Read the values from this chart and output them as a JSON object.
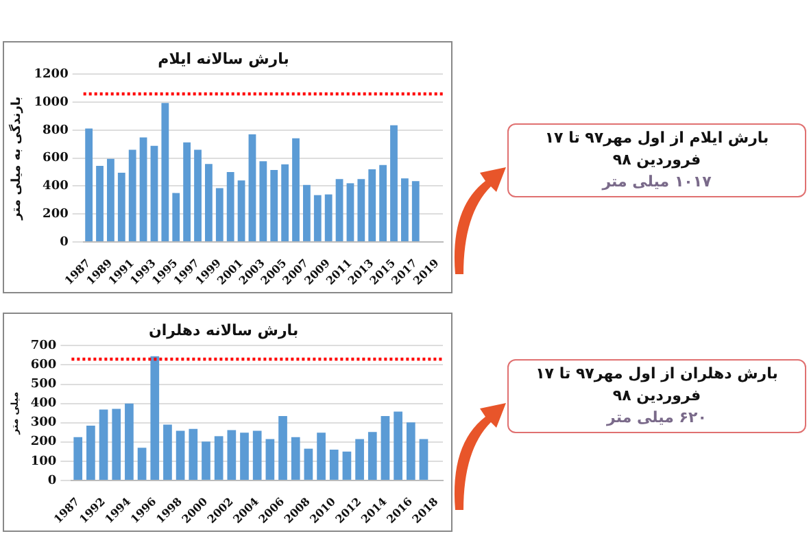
{
  "chart_data": [
    {
      "type": "bar",
      "title": "بارش سالانه ایلام",
      "ylabel": "بارندگی به میلی متر",
      "categories": [
        "1987",
        null,
        "1989",
        null,
        "1991",
        null,
        "1993",
        null,
        "1995",
        null,
        "1997",
        null,
        "1999",
        null,
        "2001",
        null,
        "2003",
        null,
        "2005",
        null,
        "2007",
        null,
        "2009",
        null,
        "2011",
        null,
        "2013",
        null,
        "2015",
        null,
        "2017",
        null,
        "2019"
      ],
      "values": [
        812,
        545,
        595,
        495,
        660,
        748,
        688,
        995,
        350,
        712,
        660,
        558,
        385,
        500,
        440,
        770,
        578,
        515,
        555,
        742,
        408,
        335,
        340,
        450,
        420,
        450,
        520,
        550,
        835,
        455,
        435,
        null,
        null
      ],
      "color": "#5b9bd5",
      "ylim": [
        0,
        1200
      ],
      "yticks": [
        0,
        200,
        400,
        600,
        800,
        1000,
        1200
      ],
      "grid": "y",
      "ref_lines": [
        {
          "axis": "y",
          "value": 1060,
          "color": "#ff0000",
          "line_style": "dotted"
        }
      ],
      "annotations": [
        "بارش ایلام از اول مهر۹۷  تا ۱۷ فروردین ۹۸",
        "۱۰۱۷ میلی متر"
      ]
    },
    {
      "type": "bar",
      "title": "بارش سالانه دهلران",
      "ylabel": "میلی متر",
      "categories": [
        "1987",
        null,
        "1992",
        null,
        "1994",
        null,
        "1996",
        null,
        "1998",
        null,
        "2000",
        null,
        "2002",
        null,
        "2004",
        null,
        "2006",
        null,
        "2008",
        null,
        "2010",
        null,
        "2012",
        null,
        "2014",
        null,
        "2016",
        null,
        "2018"
      ],
      "values": [
        225,
        285,
        368,
        372,
        400,
        170,
        645,
        290,
        258,
        268,
        202,
        230,
        262,
        248,
        258,
        215,
        335,
        225,
        165,
        248,
        160,
        150,
        215,
        252,
        335,
        358,
        302,
        215,
        null
      ],
      "color": "#5b9bd5",
      "ylim": [
        0,
        700
      ],
      "yticks": [
        0,
        100,
        200,
        300,
        400,
        500,
        600,
        700
      ],
      "grid": "y",
      "ref_lines": [
        {
          "axis": "y",
          "value": 630,
          "color": "#ff0000",
          "line_style": "dotted"
        }
      ],
      "annotations": [
        "بارش  دهلران از اول مهر۹۷  تا ۱۷ فروردین ۹۸",
        "۶۲۰ میلی متر"
      ]
    }
  ]
}
